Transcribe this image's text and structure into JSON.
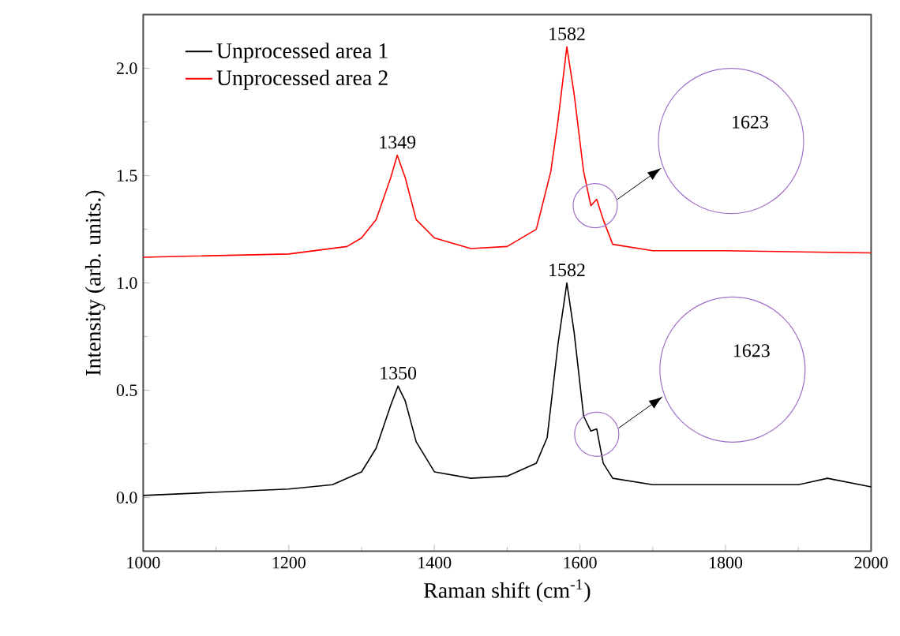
{
  "chart_data": {
    "type": "line",
    "xlabel": "Raman shift (cm$^{-1}$)",
    "ylabel": "Intensity (arb. units.)",
    "xlim": [
      1000,
      2000
    ],
    "xticks": [
      1000,
      1200,
      1400,
      1600,
      1800,
      2000
    ],
    "ylim": [
      -0.25,
      2.25
    ],
    "yticks": [
      {
        "value": 0,
        "label": "0.0"
      },
      {
        "value": 0.5,
        "label": "0.5"
      },
      {
        "value": 1.0,
        "label": "1.0"
      },
      {
        "value": 1.5,
        "label": "1.5"
      },
      {
        "value": 2.0,
        "label": "2.0"
      }
    ],
    "legend": "top left",
    "grid": false,
    "marker": "none",
    "line_style": "solid",
    "series": [
      {
        "name": "Unprocessed area 1",
        "color": "#000000",
        "x": [
          1000,
          1100,
          1200,
          1260,
          1300,
          1320,
          1340,
          1350,
          1360,
          1375,
          1400,
          1450,
          1500,
          1540,
          1555,
          1570,
          1582,
          1592,
          1605,
          1615,
          1623,
          1632,
          1645,
          1700,
          1800,
          1900,
          1940,
          2000
        ],
        "values": [
          0.01,
          0.025,
          0.04,
          0.06,
          0.12,
          0.23,
          0.43,
          0.52,
          0.45,
          0.26,
          0.12,
          0.09,
          0.1,
          0.16,
          0.28,
          0.72,
          1.0,
          0.77,
          0.38,
          0.31,
          0.32,
          0.16,
          0.09,
          0.06,
          0.06,
          0.06,
          0.09,
          0.05
        ]
      },
      {
        "name": "Unprocessed area 2",
        "color": "#ff0000",
        "x": [
          1000,
          1200,
          1280,
          1300,
          1320,
          1340,
          1349,
          1360,
          1375,
          1400,
          1450,
          1500,
          1540,
          1560,
          1570,
          1582,
          1592,
          1605,
          1615,
          1623,
          1632,
          1645,
          1700,
          1800,
          2000
        ],
        "values": [
          1.12,
          1.135,
          1.17,
          1.21,
          1.295,
          1.49,
          1.595,
          1.49,
          1.295,
          1.21,
          1.16,
          1.17,
          1.25,
          1.52,
          1.76,
          2.1,
          1.88,
          1.52,
          1.36,
          1.39,
          1.295,
          1.18,
          1.15,
          1.15,
          1.14
        ]
      }
    ],
    "annotations": [
      {
        "text": "1349",
        "x": 1349,
        "y": 1.595
      },
      {
        "text": "1582",
        "x": 1582,
        "y": 2.1
      },
      {
        "text": "1350",
        "x": 1350,
        "y": 0.52
      },
      {
        "text": "1582",
        "x": 1582,
        "y": 1.0
      },
      "1623",
      "1623"
    ]
  }
}
